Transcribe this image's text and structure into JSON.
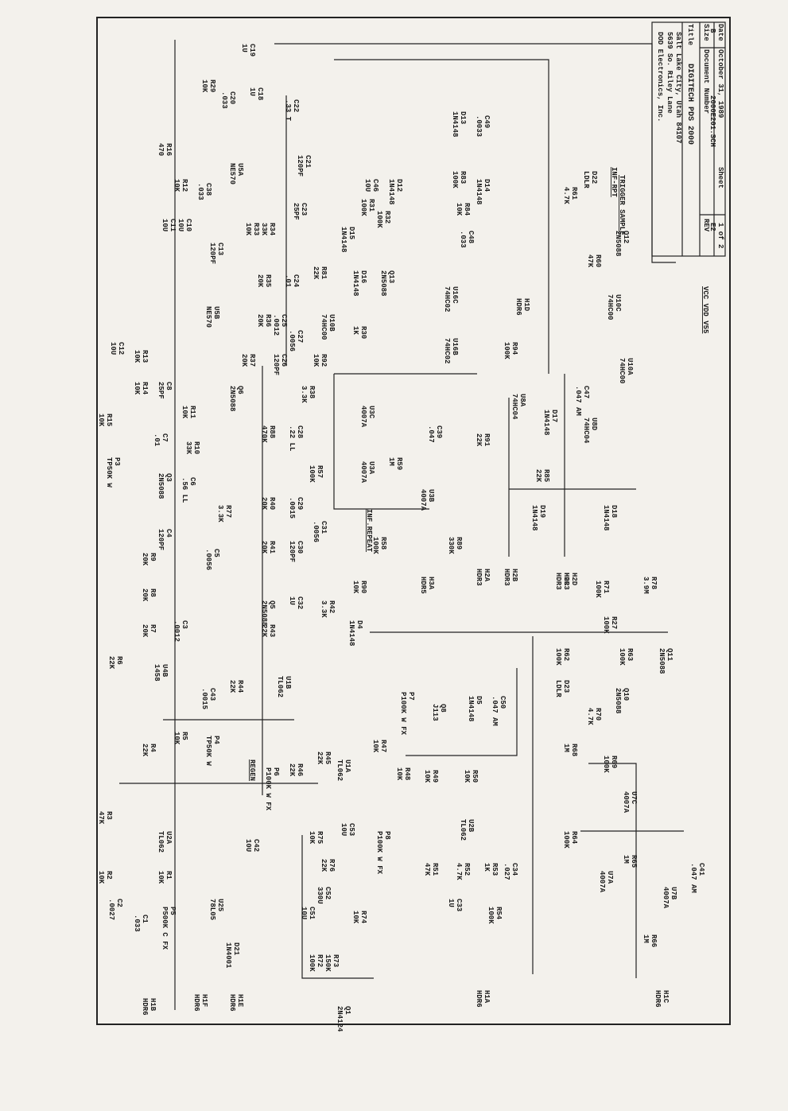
{
  "title_block": {
    "company": "DOD Electronics, Inc.",
    "address": "5639 So. Riley Lane",
    "city": "Salt Lake City, Utah 84107",
    "title_label": "Title",
    "title": "DIGITECH PDS 2000",
    "size_label": "Size",
    "size": "B",
    "document_label": "Document Number",
    "document": "2000E201.SCH",
    "rev_label": "REV",
    "rev": "E2",
    "date_label": "Date",
    "date": "October 31, 1989",
    "sheet_label": "Sheet",
    "sheet": "1 of 2"
  },
  "notes": [
    "INF-RPT",
    "TRIGGER SAMPLE",
    "INF.REPEAT",
    "REGEN",
    "VCC VDD V55"
  ],
  "components": [
    [
      "R16",
      "470"
    ],
    [
      "R29",
      "10K"
    ],
    [
      "C20",
      ".033"
    ],
    [
      "C19",
      "1U"
    ],
    [
      "C18",
      "1U"
    ],
    [
      "C22",
      ".33 T"
    ],
    [
      "C21",
      "120PF"
    ],
    [
      "U5A",
      "NE570"
    ],
    [
      "C23",
      "25PF"
    ],
    [
      "R12",
      "10K"
    ],
    [
      "C38",
      ".033"
    ],
    [
      "C11",
      "10U"
    ],
    [
      "C10",
      "10U"
    ],
    [
      "C13",
      "120PF"
    ],
    [
      "R33",
      "10K"
    ],
    [
      "R34",
      "33K"
    ],
    [
      "U5B",
      "NE570"
    ],
    [
      "C12",
      "10U"
    ],
    [
      "R13",
      "10K"
    ],
    [
      "R14",
      "10K"
    ],
    [
      "C8",
      "25PF"
    ],
    [
      "R11",
      "10K"
    ],
    [
      "R15",
      "10K"
    ],
    [
      "C7",
      ".01"
    ],
    [
      "R10",
      "33K"
    ],
    [
      "C6",
      ".56 LL"
    ],
    [
      "P3",
      "TP50K W"
    ],
    [
      "Q3",
      "2N5088"
    ],
    [
      "R77",
      "3.3K"
    ],
    [
      "C4",
      "120PF"
    ],
    [
      "R9",
      "20K"
    ],
    [
      "C5",
      ".0056"
    ],
    [
      "R8",
      "20K"
    ],
    [
      "C3",
      ".0012"
    ],
    [
      "R7",
      "20K"
    ],
    [
      "R6",
      "22K"
    ],
    [
      "U4B",
      "1458"
    ],
    [
      "C43",
      ".0015"
    ],
    [
      "R44",
      "22K"
    ],
    [
      "U1B",
      "TL062"
    ],
    [
      "R5",
      "10K"
    ],
    [
      "P4",
      "TP50K W"
    ],
    [
      "R4",
      "22K"
    ],
    [
      "R3",
      "47K"
    ],
    [
      "U2A",
      "TL062"
    ],
    [
      "R2",
      "10K"
    ],
    [
      "R1",
      "10K"
    ],
    [
      "C2",
      ".0027"
    ],
    [
      "C1",
      ".033"
    ],
    [
      "P5",
      "P500K C FX"
    ],
    [
      "U25",
      "78L05"
    ],
    [
      "C42",
      "10U"
    ],
    [
      "D21",
      "1N4001"
    ],
    [
      "R72",
      "100K"
    ],
    [
      "R73",
      "150K"
    ],
    [
      "Q1",
      "2N4124"
    ],
    [
      "C51",
      "10U"
    ],
    [
      "C52",
      "330U"
    ],
    [
      "R74",
      "10K"
    ],
    [
      "R75",
      "10K"
    ],
    [
      "R76",
      "22K"
    ],
    [
      "C53",
      "10U"
    ],
    [
      "U1A",
      "TL062"
    ],
    [
      "R46",
      "22K"
    ],
    [
      "R45",
      "22K"
    ],
    [
      "P6",
      "P100K W FX"
    ],
    [
      "R47",
      "10K"
    ],
    [
      "R48",
      "10K"
    ],
    [
      "R49",
      "10K"
    ],
    [
      "R50",
      "10K"
    ],
    [
      "U2B",
      "TL062"
    ],
    [
      "R51",
      "47K"
    ],
    [
      "R52",
      "4.7K"
    ],
    [
      "R53",
      "1K"
    ],
    [
      "C34",
      ".027"
    ],
    [
      "C33",
      "1U"
    ],
    [
      "R54",
      "100K"
    ],
    [
      "P8",
      "P100K W FX"
    ],
    [
      "P7",
      "P100K W FX"
    ],
    [
      "Q8",
      "J113"
    ],
    [
      "D5",
      "1N4148"
    ],
    [
      "C50",
      ".047 AM"
    ],
    [
      "R31",
      "100K"
    ],
    [
      "R32",
      "100K"
    ],
    [
      "C46",
      "10U"
    ],
    [
      "D12",
      "1N4148"
    ],
    [
      "D15",
      "1N4148"
    ],
    [
      "D16",
      "1N4148"
    ],
    [
      "Q13",
      "2N5088"
    ],
    [
      "R81",
      "22K"
    ],
    [
      "U10B",
      "74HC00"
    ],
    [
      "R30",
      "1K"
    ],
    [
      "R35",
      "20K"
    ],
    [
      "C24",
      ".01"
    ],
    [
      "R36",
      "20K"
    ],
    [
      "C25",
      ".0012"
    ],
    [
      "C27",
      ".0056"
    ],
    [
      "R37",
      "20K"
    ],
    [
      "C26",
      "120PF"
    ],
    [
      "R92",
      "10K"
    ],
    [
      "Q6",
      "2N5088"
    ],
    [
      "R38",
      "3.3K"
    ],
    [
      "R88",
      "470K"
    ],
    [
      "C28",
      ".22 LL"
    ],
    [
      "U3C",
      "4007A"
    ],
    [
      "C39",
      ".047"
    ],
    [
      "U3A",
      "4007A"
    ],
    [
      "R59",
      "1M"
    ],
    [
      "U3B",
      "4007A"
    ],
    [
      "R57",
      "100K"
    ],
    [
      "R40",
      "20K"
    ],
    [
      "C29",
      ".0015"
    ],
    [
      "R41",
      "20K"
    ],
    [
      "C30",
      "120PF"
    ],
    [
      "C31",
      ".0056"
    ],
    [
      "Q5",
      "2N5088"
    ],
    [
      "C32",
      "1U"
    ],
    [
      "R42",
      "3.3K"
    ],
    [
      "R43",
      "22K"
    ],
    [
      "R58",
      "100K"
    ],
    [
      "R89",
      "330K"
    ],
    [
      "R90",
      "10K"
    ],
    [
      "D4",
      "1N4148"
    ],
    [
      "D13",
      "1N4148"
    ],
    [
      "C49",
      ".0033"
    ],
    [
      "R83",
      "100K"
    ],
    [
      "D14",
      "1N4148"
    ],
    [
      "R84",
      "10K"
    ],
    [
      "C48",
      ".033"
    ],
    [
      "U16C",
      "74HC02"
    ],
    [
      "U16B",
      "74HC02"
    ],
    [
      "R94",
      "100K"
    ],
    [
      "U8A",
      "74HC04"
    ],
    [
      "D17",
      "1N4148"
    ],
    [
      "C47",
      ".047 AM"
    ],
    [
      "R91",
      "22K"
    ],
    [
      "R85",
      "22K"
    ],
    [
      "D19",
      "1N4148"
    ],
    [
      "D18",
      "1N4148"
    ],
    [
      "R71",
      "100K"
    ],
    [
      "R78",
      "3.9M"
    ],
    [
      "R27",
      "100K"
    ],
    [
      "R62",
      "100K"
    ],
    [
      "R63",
      "100K"
    ],
    [
      "Q11",
      "2N5088"
    ],
    [
      "D23",
      "LDLR"
    ],
    [
      "Q10",
      "2N5088"
    ],
    [
      "R70",
      "4.7K"
    ],
    [
      "R68",
      "1M"
    ],
    [
      "R69",
      "100K"
    ],
    [
      "U7C",
      "4007A"
    ],
    [
      "R64",
      "100K"
    ],
    [
      "R65",
      "1M"
    ],
    [
      "U7A",
      "4007A"
    ],
    [
      "U7B",
      "4007A"
    ],
    [
      "C41",
      ".047 AM"
    ],
    [
      "R66",
      "1M"
    ],
    [
      "R61",
      "4.7K"
    ],
    [
      "D22",
      "LDLR"
    ],
    [
      "Q12",
      "2N5088"
    ],
    [
      "R60",
      "47K"
    ],
    [
      "U10C",
      "74HC00"
    ],
    [
      "U10A",
      "74HC00"
    ],
    [
      "U8D",
      "74HC04"
    ]
  ],
  "connectors": [
    [
      "H1B",
      "HDR6"
    ],
    [
      "H1F",
      "HDR6"
    ],
    [
      "H1E",
      "HDR6"
    ],
    [
      "H1A",
      "HDR6"
    ],
    [
      "H1C",
      "HDR6"
    ],
    [
      "H3A",
      "HDR5"
    ],
    [
      "H2A",
      "HDR3"
    ],
    [
      "H2B",
      "HDR3"
    ],
    [
      "H2C",
      "HDR3"
    ],
    [
      "H2D",
      "HDR3"
    ],
    [
      "H1D",
      "HDR6"
    ]
  ]
}
